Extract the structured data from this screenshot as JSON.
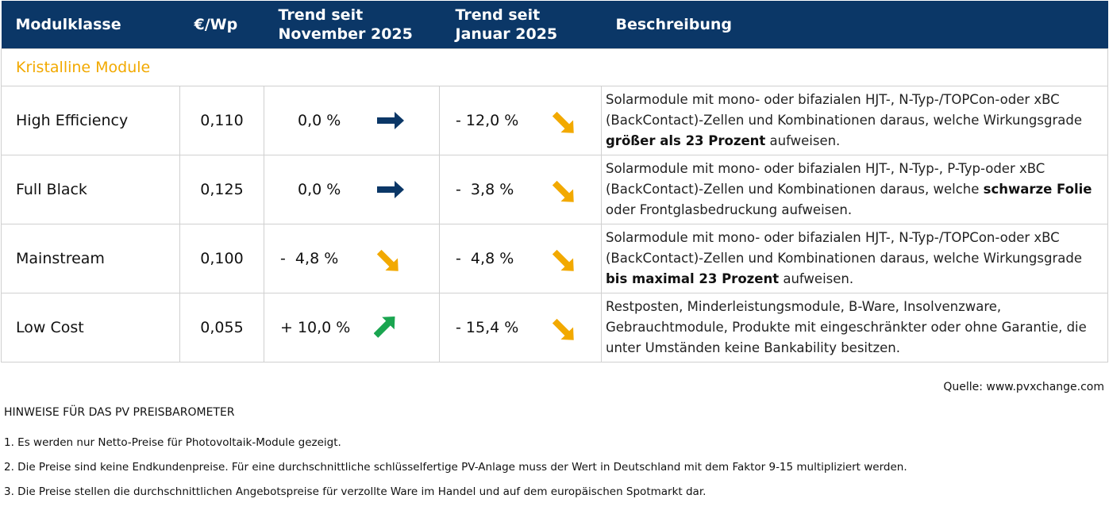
{
  "table": {
    "headers": [
      "Modulklasse",
      "€/Wp",
      "Trend seit November 2025",
      "Trend seit Januar 2025",
      "Beschreibung"
    ],
    "section": "Kristalline Module",
    "rows": [
      {
        "name": "High Efficiency",
        "price": "0,110",
        "trend_nov": "0,0 %",
        "trend_jan": "- 12,0 %",
        "description": [
          "Solarmodule mit mono- oder bifazialen HJT-, N-Typ-/TOPCon-oder xBC (BackContact)-Zellen und Kombinationen daraus, welche Wirkungsgrade ",
          "größer als 23 Prozent",
          " aufweisen."
        ]
      },
      {
        "name": "Full Black",
        "price": "0,125",
        "trend_nov": "0,0 %",
        "trend_jan": "-  3,8 %",
        "description": [
          "Solarmodule mit mono- oder bifazialen HJT-, N-Typ-, P-Typ-oder xBC (BackContact)-Zellen und Kombinationen daraus, welche ",
          "schwarze Folie",
          " oder Frontglasbedruckung aufweisen."
        ]
      },
      {
        "name": "Mainstream",
        "price": "0,100",
        "trend_nov": "-  4,8 %",
        "trend_jan": "-  4,8 %",
        "description": [
          "Solarmodule mit mono- oder bifazialen HJT-, N-Typ-/TOPCon-oder xBC (BackContact)-Zellen und Kombinationen daraus, welche Wirkungsgrade ",
          "bis maximal 23 Prozent",
          " aufweisen."
        ]
      },
      {
        "name": "Low Cost",
        "price": "0,055",
        "trend_nov": "+ 10,0 %",
        "trend_jan": "- 15,4 %",
        "description": [
          "Restposten, Minderleistungsmodule, B-Ware, Insolvenzware, Gebrauchtmodule, Produkte mit eingeschränkter oder ohne Garantie, die unter Umständen keine Bankability besitzen."
        ]
      }
    ]
  },
  "source": "Quelle: www.pvxchange.com",
  "notes": {
    "title": "HINWEISE FÜR DAS PV PREISBAROMETER",
    "items": [
      "1.  Es werden nur Netto-Preise für Photovoltaik-Module gezeigt.",
      "2. Die Preise sind keine Endkundenpreise. Für eine durchschnittliche schlüsselfertige PV-Anlage muss der Wert in Deutschland mit dem Faktor 9-15 multipliziert werden.",
      "3. Die Preise stellen die durchschnittlichen Angebotspreise für verzollte Ware im Handel und auf dem europäischen Spotmarkt dar."
    ]
  }
}
